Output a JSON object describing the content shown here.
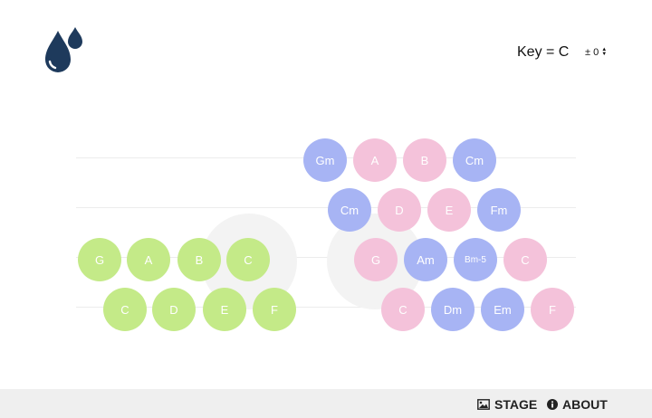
{
  "header": {
    "key_label": "Key = C",
    "transpose": "± 0"
  },
  "icons": {
    "logo": "water-drops-logo",
    "stage": "image-icon",
    "about": "info-circle-icon"
  },
  "colors": {
    "brand": "#1e3a5c",
    "blue": "#a7b4f4",
    "pink": "#f4c2da",
    "green": "#c4ea88"
  },
  "left_grid": {
    "row1": [
      "G",
      "A",
      "B",
      "C"
    ],
    "row2": [
      "C",
      "D",
      "E",
      "F"
    ]
  },
  "right_grid": {
    "row1": [
      "Gm",
      "A",
      "B",
      "Cm"
    ],
    "row2": [
      "Cm",
      "D",
      "E",
      "Fm"
    ],
    "row3": [
      "G",
      "Am",
      "Bm-5",
      "C"
    ],
    "row4": [
      "C",
      "Dm",
      "Em",
      "F"
    ]
  },
  "footer": {
    "stage_label": "STAGE",
    "about_label": "ABOUT"
  }
}
